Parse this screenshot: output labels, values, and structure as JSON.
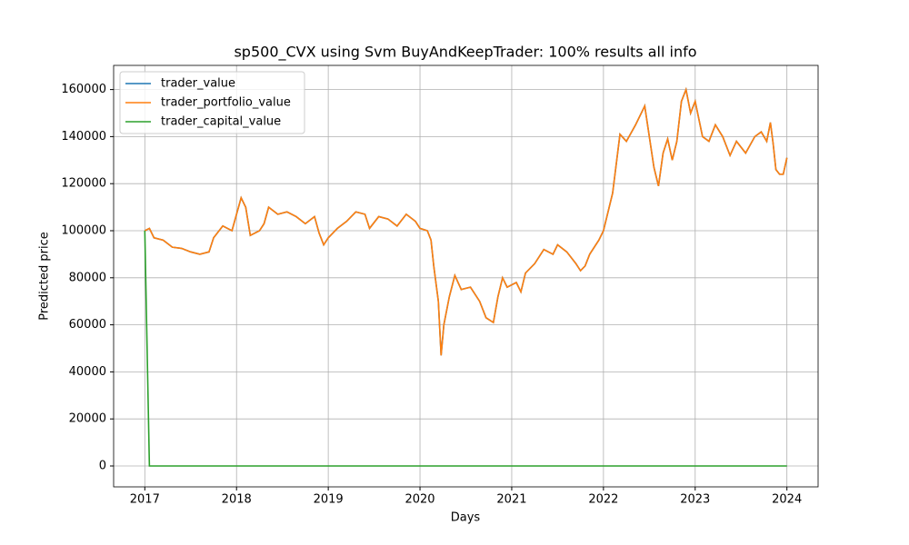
{
  "chart_data": {
    "type": "line",
    "title": "sp500_CVX using Svm BuyAndKeepTrader: 100% results all info",
    "xlabel": "Days",
    "ylabel": "Predicted price",
    "x": [
      2017,
      2017.05,
      2017.1,
      2017.2,
      2017.3,
      2017.4,
      2017.5,
      2017.6,
      2017.7,
      2017.75,
      2017.85,
      2017.95,
      2018,
      2018.05,
      2018.1,
      2018.15,
      2018.25,
      2018.3,
      2018.35,
      2018.45,
      2018.55,
      2018.65,
      2018.75,
      2018.85,
      2018.9,
      2018.95,
      2019,
      2019.1,
      2019.2,
      2019.3,
      2019.4,
      2019.45,
      2019.55,
      2019.65,
      2019.75,
      2019.85,
      2019.95,
      2020,
      2020.08,
      2020.12,
      2020.15,
      2020.2,
      2020.23,
      2020.26,
      2020.32,
      2020.38,
      2020.45,
      2020.55,
      2020.65,
      2020.72,
      2020.8,
      2020.85,
      2020.9,
      2020.95,
      2021.05,
      2021.1,
      2021.15,
      2021.25,
      2021.35,
      2021.45,
      2021.5,
      2021.6,
      2021.7,
      2021.75,
      2021.8,
      2021.85,
      2021.95,
      2022,
      2022.05,
      2022.1,
      2022.18,
      2022.25,
      2022.35,
      2022.45,
      2022.5,
      2022.55,
      2022.6,
      2022.65,
      2022.7,
      2022.75,
      2022.8,
      2022.85,
      2022.9,
      2022.95,
      2023,
      2023.08,
      2023.15,
      2023.22,
      2023.3,
      2023.38,
      2023.45,
      2023.55,
      2023.65,
      2023.72,
      2023.78,
      2023.82,
      2023.85,
      2023.88,
      2023.92,
      2023.96,
      2024
    ],
    "series": [
      {
        "name": "trader_value",
        "color": "#1f77b4",
        "values": [
          100000,
          101000,
          97000,
          96000,
          93000,
          92500,
          91000,
          90000,
          91000,
          97000,
          102000,
          100000,
          107000,
          114000,
          110000,
          98000,
          100000,
          103000,
          110000,
          107000,
          108000,
          106000,
          103000,
          106000,
          99000,
          94000,
          97000,
          101000,
          104000,
          108000,
          107000,
          101000,
          106000,
          105000,
          102000,
          107000,
          104000,
          101000,
          100000,
          96000,
          85000,
          70000,
          47000,
          60000,
          72000,
          81000,
          75000,
          76000,
          70000,
          63000,
          61000,
          72000,
          80000,
          76000,
          78000,
          74000,
          82000,
          86000,
          92000,
          90000,
          94000,
          91000,
          86000,
          83000,
          85000,
          90000,
          96000,
          100000,
          108000,
          116000,
          141000,
          138000,
          145000,
          153000,
          140000,
          127000,
          119000,
          133000,
          139000,
          130000,
          138000,
          155000,
          160000,
          150000,
          155000,
          140000,
          138000,
          145000,
          140000,
          132000,
          138000,
          133000,
          140000,
          142000,
          138000,
          146000,
          137000,
          126000,
          124000,
          124000,
          131000
        ]
      },
      {
        "name": "trader_portfolio_value",
        "color": "#ff7f0e",
        "values": [
          100000,
          101000,
          97000,
          96000,
          93000,
          92500,
          91000,
          90000,
          91000,
          97000,
          102000,
          100000,
          107000,
          114000,
          110000,
          98000,
          100000,
          103000,
          110000,
          107000,
          108000,
          106000,
          103000,
          106000,
          99000,
          94000,
          97000,
          101000,
          104000,
          108000,
          107000,
          101000,
          106000,
          105000,
          102000,
          107000,
          104000,
          101000,
          100000,
          96000,
          85000,
          70000,
          47000,
          60000,
          72000,
          81000,
          75000,
          76000,
          70000,
          63000,
          61000,
          72000,
          80000,
          76000,
          78000,
          74000,
          82000,
          86000,
          92000,
          90000,
          94000,
          91000,
          86000,
          83000,
          85000,
          90000,
          96000,
          100000,
          108000,
          116000,
          141000,
          138000,
          145000,
          153000,
          140000,
          127000,
          119000,
          133000,
          139000,
          130000,
          138000,
          155000,
          160000,
          150000,
          155000,
          140000,
          138000,
          145000,
          140000,
          132000,
          138000,
          133000,
          140000,
          142000,
          138000,
          146000,
          137000,
          126000,
          124000,
          124000,
          131000
        ]
      },
      {
        "name": "trader_capital_value",
        "color": "#2ca02c",
        "values": [
          100000,
          0,
          0,
          0,
          0,
          0,
          0,
          0,
          0,
          0,
          0,
          0,
          0,
          0,
          0,
          0,
          0,
          0,
          0,
          0,
          0,
          0,
          0,
          0,
          0,
          0,
          0,
          0,
          0,
          0,
          0,
          0,
          0,
          0,
          0,
          0,
          0,
          0,
          0,
          0,
          0,
          0,
          0,
          0,
          0,
          0,
          0,
          0,
          0,
          0,
          0,
          0,
          0,
          0,
          0,
          0,
          0,
          0,
          0,
          0,
          0,
          0,
          0,
          0,
          0,
          0,
          0,
          0,
          0,
          0,
          0,
          0,
          0,
          0,
          0,
          0,
          0,
          0,
          0,
          0,
          0,
          0,
          0,
          0,
          0,
          0,
          0,
          0,
          0,
          0,
          0,
          0,
          0,
          0,
          0,
          0,
          0,
          0,
          0,
          0,
          0
        ]
      }
    ],
    "xlim": [
      2016.66,
      2024.34
    ],
    "xticks": [
      2017,
      2018,
      2019,
      2020,
      2021,
      2022,
      2023,
      2024
    ],
    "ylim": [
      -8880,
      170270
    ],
    "yticks": [
      0,
      20000,
      40000,
      60000,
      80000,
      100000,
      120000,
      140000,
      160000
    ],
    "grid": true,
    "legend": "upper left"
  }
}
